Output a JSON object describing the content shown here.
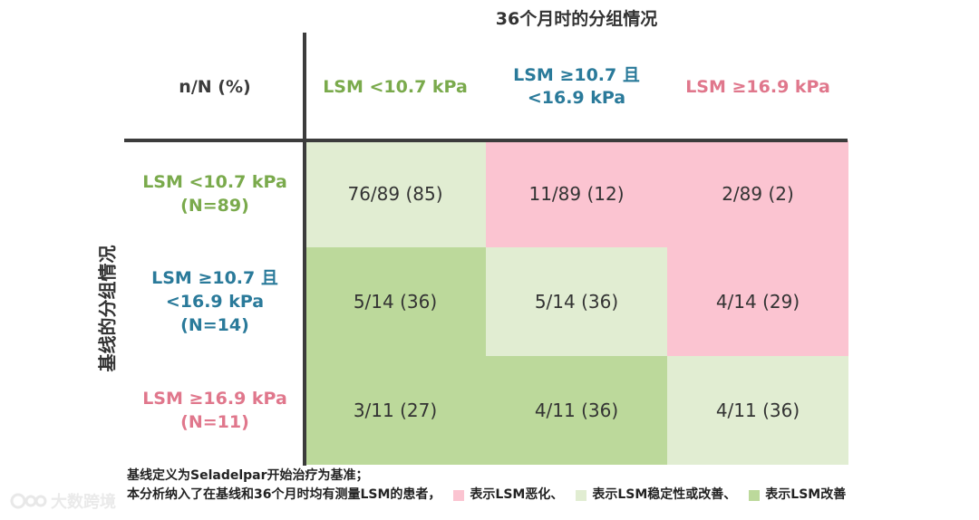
{
  "chart_data": {
    "type": "table",
    "title": "36个月时的分组情况",
    "corner_label": "n/N (%)",
    "y_title": "基线的分组情况",
    "columns": [
      {
        "lines": [
          "LSM <10.7 kPa"
        ],
        "color": "#7aaa4c"
      },
      {
        "lines": [
          "LSM ≥10.7 且",
          "<16.9 kPa"
        ],
        "color": "#2a7a9a"
      },
      {
        "lines": [
          "LSM ≥16.9 kPa"
        ],
        "color": "#e0778c"
      }
    ],
    "rows": [
      {
        "lines": [
          "LSM <10.7 kPa",
          "(N=89)"
        ],
        "color": "#7aaa4c"
      },
      {
        "lines": [
          "LSM ≥10.7 且",
          "<16.9 kPa",
          "(N=14)"
        ],
        "color": "#2a7a9a"
      },
      {
        "lines": [
          "LSM ≥16.9 kPa",
          "(N=11)"
        ],
        "color": "#e0778c"
      }
    ],
    "cells": [
      [
        {
          "text": "76/89 (85)",
          "n": 76,
          "N": 89,
          "pct": 85,
          "category": "stable"
        },
        {
          "text": "11/89 (12)",
          "n": 11,
          "N": 89,
          "pct": 12,
          "category": "worse"
        },
        {
          "text": "2/89 (2)",
          "n": 2,
          "N": 89,
          "pct": 2,
          "category": "worse"
        }
      ],
      [
        {
          "text": "5/14 (36)",
          "n": 5,
          "N": 14,
          "pct": 36,
          "category": "improved"
        },
        {
          "text": "5/14 (36)",
          "n": 5,
          "N": 14,
          "pct": 36,
          "category": "stable"
        },
        {
          "text": "4/14 (29)",
          "n": 4,
          "N": 14,
          "pct": 29,
          "category": "worse"
        }
      ],
      [
        {
          "text": "3/11 (27)",
          "n": 3,
          "N": 11,
          "pct": 27,
          "category": "improved"
        },
        {
          "text": "4/11 (36)",
          "n": 4,
          "N": 11,
          "pct": 36,
          "category": "improved"
        },
        {
          "text": "4/11 (36)",
          "n": 4,
          "N": 11,
          "pct": 36,
          "category": "stable"
        }
      ]
    ],
    "category_colors": {
      "worse": "#fbc4d1",
      "stable": "#e1edd2",
      "improved": "#bcd99b"
    }
  },
  "footnote": {
    "line1": "基线定义为Seladelpar开始治疗为基准；",
    "line2_prefix": "本分析纳入了在基线和36个月时均有测量LSM的患者，",
    "legend": [
      {
        "label": "表示LSM恶化、",
        "category": "worse"
      },
      {
        "label": "表示LSM稳定性或改善、",
        "category": "stable"
      },
      {
        "label": "表示LSM改善",
        "category": "improved"
      }
    ]
  },
  "watermark": {
    "text": "大数跨境",
    "icon": "logo-icon"
  }
}
